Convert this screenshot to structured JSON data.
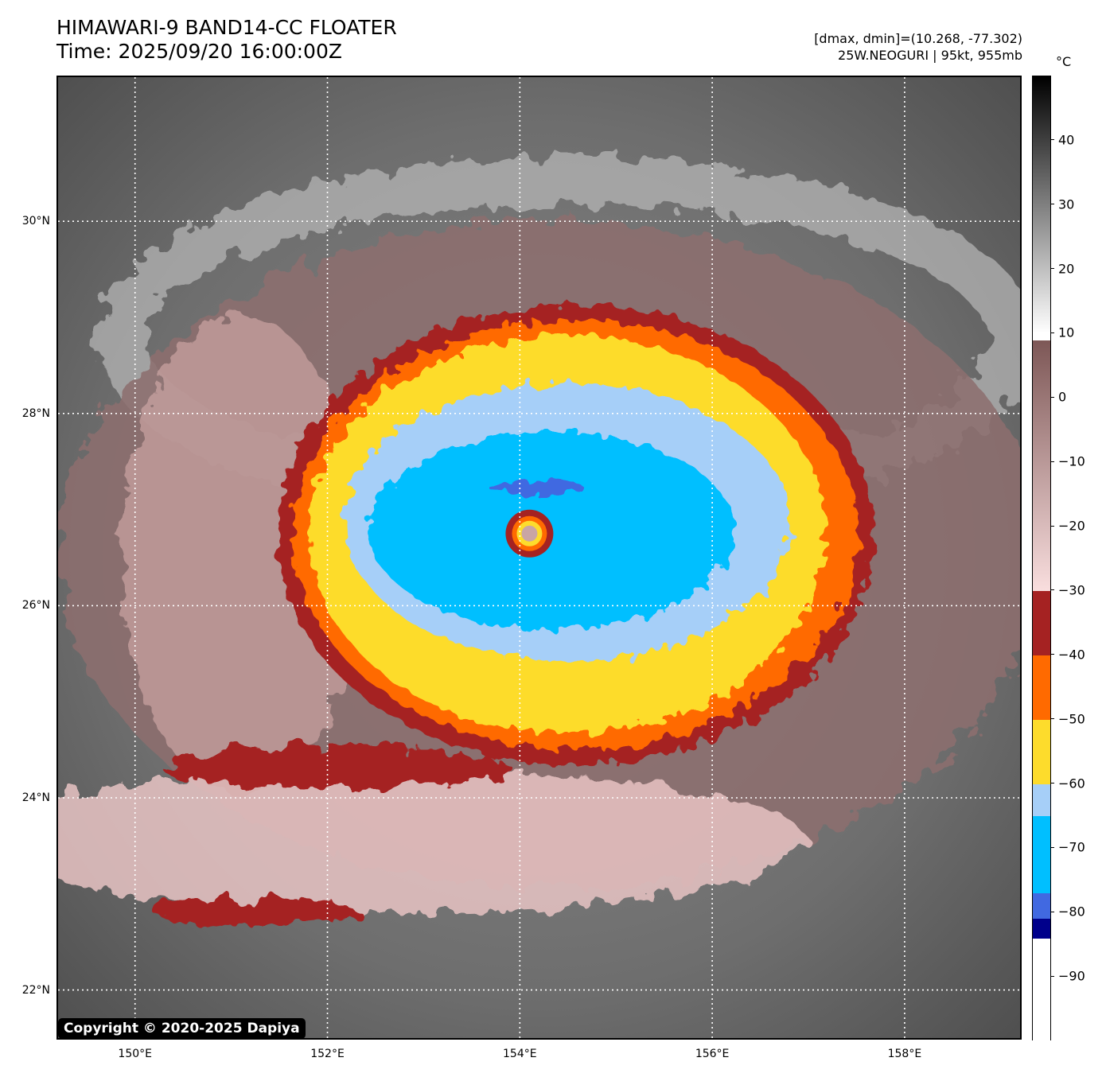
{
  "header": {
    "title_line1": "HIMAWARI-9 BAND14-CC FLOATER",
    "title_line2": "Time: 2025/09/20 16:00:00Z",
    "info_line1": "[dmax, dmin]=(10.268, -77.302)",
    "info_line2": "25W.NEOGURI | 95kt, 955mb"
  },
  "copyright": "Copyright © 2020-2025 Dapiya",
  "map": {
    "lon_range": [
      149.2,
      159.2
    ],
    "lat_range": [
      21.5,
      31.5
    ],
    "lat_ticks": [
      {
        "value": 30,
        "label": "30°N"
      },
      {
        "value": 28,
        "label": "28°N"
      },
      {
        "value": 26,
        "label": "26°N"
      },
      {
        "value": 24,
        "label": "24°N"
      },
      {
        "value": 22,
        "label": "22°N"
      }
    ],
    "lon_ticks": [
      {
        "value": 150,
        "label": "150°E"
      },
      {
        "value": 152,
        "label": "152°E"
      },
      {
        "value": 154,
        "label": "154°E"
      },
      {
        "value": 156,
        "label": "156°E"
      },
      {
        "value": 158,
        "label": "158°E"
      }
    ],
    "storm_center": {
      "lon": 154.1,
      "lat": 26.75
    }
  },
  "colorbar": {
    "unit": "°C",
    "range": [
      -100,
      50
    ],
    "ticks": [
      {
        "value": 40,
        "label": "40"
      },
      {
        "value": 30,
        "label": "30"
      },
      {
        "value": 20,
        "label": "20"
      },
      {
        "value": 10,
        "label": "10"
      },
      {
        "value": 0,
        "label": "0"
      },
      {
        "value": -10,
        "label": "−10"
      },
      {
        "value": -20,
        "label": "−20"
      },
      {
        "value": -30,
        "label": "−30"
      },
      {
        "value": -40,
        "label": "−40"
      },
      {
        "value": -50,
        "label": "−50"
      },
      {
        "value": -60,
        "label": "−60"
      },
      {
        "value": -70,
        "label": "−70"
      },
      {
        "value": -80,
        "label": "−80"
      },
      {
        "value": -90,
        "label": "−90"
      }
    ],
    "bands": [
      {
        "from": 10,
        "to": 50,
        "colors": [
          "#ffffff",
          "#000000"
        ]
      },
      {
        "from": -30,
        "to": 9,
        "colors": [
          "#f9dede",
          "#7d5756"
        ]
      },
      {
        "from": -40,
        "to": -30,
        "colors": [
          "#a52222"
        ]
      },
      {
        "from": -50,
        "to": -40,
        "colors": [
          "#ff6a00"
        ]
      },
      {
        "from": -60,
        "to": -50,
        "colors": [
          "#fddc2c"
        ]
      },
      {
        "from": -65,
        "to": -60,
        "colors": [
          "#a6cff8"
        ]
      },
      {
        "from": -77,
        "to": -65,
        "colors": [
          "#00bfff"
        ]
      },
      {
        "from": -81,
        "to": -77,
        "colors": [
          "#4169e1"
        ]
      },
      {
        "from": -84,
        "to": -81,
        "colors": [
          "#00008b"
        ]
      },
      {
        "from": -100,
        "to": -84,
        "colors": [
          "#ffffff"
        ]
      }
    ]
  }
}
